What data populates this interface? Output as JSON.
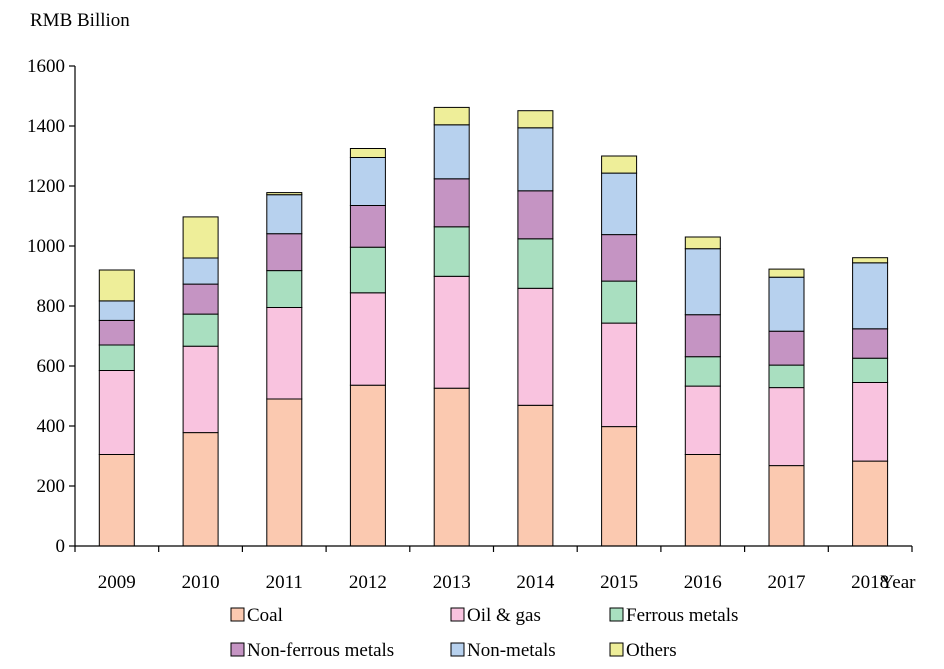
{
  "chart_data": {
    "type": "bar",
    "stacked": true,
    "ylabel": "RMB Billion",
    "xlabel": "Year",
    "ylim": [
      0,
      1600
    ],
    "yticks": [
      0,
      200,
      400,
      600,
      800,
      1000,
      1200,
      1400,
      1600
    ],
    "categories": [
      "2009",
      "2010",
      "2011",
      "2012",
      "2013",
      "2014",
      "2015",
      "2016",
      "2017",
      "2018"
    ],
    "series": [
      {
        "name": "Coal",
        "color": "#fbc9b0",
        "values": [
          305,
          378,
          490,
          536,
          526,
          469,
          398,
          305,
          268,
          283
        ]
      },
      {
        "name": "Oil & gas",
        "color": "#f9c3df",
        "values": [
          280,
          288,
          305,
          308,
          373,
          390,
          345,
          228,
          260,
          262
        ]
      },
      {
        "name": "Ferrous metals",
        "color": "#a9dfc0",
        "values": [
          85,
          107,
          123,
          152,
          165,
          165,
          140,
          98,
          75,
          81
        ]
      },
      {
        "name": "Non-ferrous metals",
        "color": "#c594c3",
        "values": [
          82,
          100,
          123,
          139,
          160,
          160,
          155,
          140,
          113,
          98
        ]
      },
      {
        "name": "Non-metals",
        "color": "#b7d1ee",
        "values": [
          65,
          87,
          130,
          160,
          180,
          210,
          205,
          220,
          180,
          220
        ]
      },
      {
        "name": "Others",
        "color": "#eeee99",
        "values": [
          103,
          137,
          7,
          30,
          58,
          57,
          57,
          39,
          27,
          17
        ]
      }
    ],
    "legend": {
      "position": "bottom"
    },
    "grid": false
  }
}
